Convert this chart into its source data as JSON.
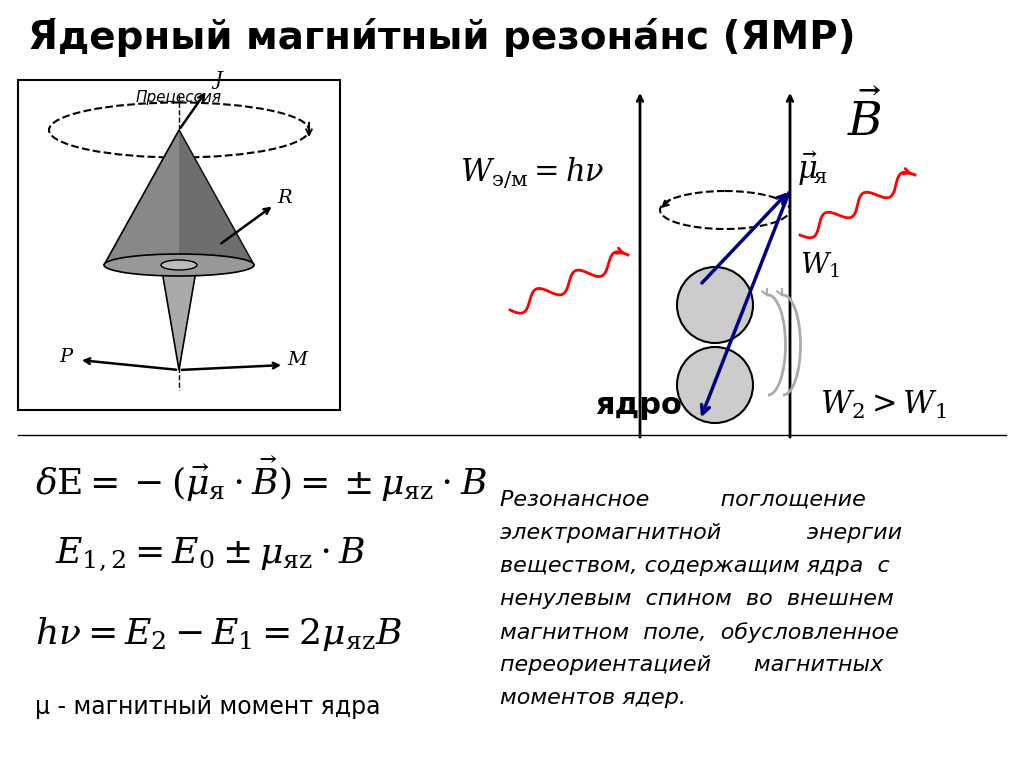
{
  "title": "Я́дерный магни́тный резона́нс (ЯМР)",
  "bg_color": "#ffffff",
  "title_color": "#000000",
  "title_fontsize": 28,
  "formula1": "$\\delta E = -(\\vec{\\mu}_{\\!\\mathit{\\scriptscriptstyle{\\!\\!\\mathit{\\text{я}}}}} \\cdot \\vec{B}) = \\pm\\mu_{\\mathit{\\text{яz}}} \\cdot B$",
  "formula2": "$E_{1,2} = E_0 \\pm \\mu_{\\mathit{\\text{яz}}} \\cdot B$",
  "formula3": "$h\\nu = E_2 - E_1 = 2\\mu_{\\mathit{\\text{яz}}}B$",
  "formula_note": "μ - магнитный момент ядра",
  "yadro_label": "ядро",
  "desc_lines": [
    "Резонансное          поглощение",
    "электромагнитной            энергии",
    "веществом, содержащим ядра  с",
    "ненулевым  спином  во  внешнем",
    "магнитном  поле,  обусловленное",
    "переориентацией      магнитных",
    "моментов ядер."
  ]
}
